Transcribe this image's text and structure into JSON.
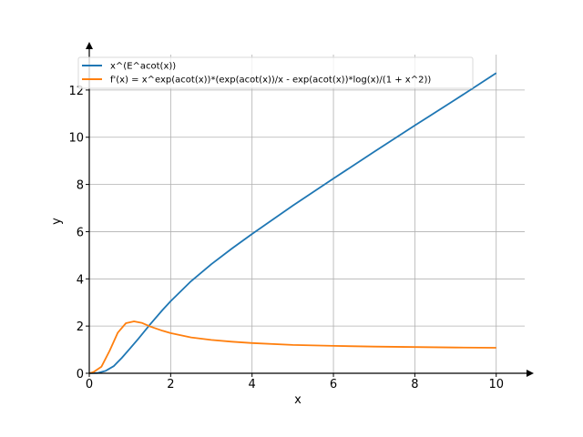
{
  "chart_data": {
    "type": "line",
    "xlabel": "x",
    "ylabel": "y",
    "xlim": [
      0,
      10.7
    ],
    "ylim": [
      0,
      13.5
    ],
    "x_ticks": [
      0,
      2,
      4,
      6,
      8,
      10
    ],
    "y_ticks": [
      0,
      2,
      4,
      6,
      8,
      10,
      12
    ],
    "x_tick_labels": [
      "0",
      "2",
      "4",
      "6",
      "8",
      "10"
    ],
    "y_tick_labels": [
      "0",
      "2",
      "4",
      "6",
      "8",
      "10",
      "12"
    ],
    "grid": true,
    "legend_position": "top-left",
    "series": [
      {
        "name": "x^(E^acot(x))",
        "color": "#1f77b4",
        "x": [
          0,
          0.2,
          0.4,
          0.6,
          0.8,
          1.0,
          1.2,
          1.5,
          1.8,
          2.0,
          2.5,
          3.0,
          3.5,
          4.0,
          5.0,
          6.0,
          7.0,
          8.0,
          9.0,
          10.0
        ],
        "y": [
          0,
          0.01,
          0.1,
          0.3,
          0.65,
          1.05,
          1.45,
          2.08,
          2.68,
          3.05,
          3.9,
          4.62,
          5.28,
          5.9,
          7.1,
          8.25,
          9.38,
          10.5,
          11.6,
          12.72
        ]
      },
      {
        "name": "f'(x) = x^exp(acot(x))*(exp(acot(x))/x - exp(acot(x))*log(x)/(1 + x^2))",
        "color": "#ff7f0e",
        "x": [
          0,
          0.1,
          0.3,
          0.5,
          0.7,
          0.9,
          1.1,
          1.3,
          1.5,
          1.8,
          2.0,
          2.5,
          3.0,
          3.5,
          4.0,
          5.0,
          6.0,
          7.0,
          8.0,
          9.0,
          10.0
        ],
        "y": [
          0,
          0.05,
          0.28,
          0.95,
          1.72,
          2.12,
          2.2,
          2.13,
          1.98,
          1.8,
          1.7,
          1.52,
          1.41,
          1.34,
          1.28,
          1.2,
          1.16,
          1.13,
          1.11,
          1.09,
          1.08
        ]
      }
    ]
  }
}
